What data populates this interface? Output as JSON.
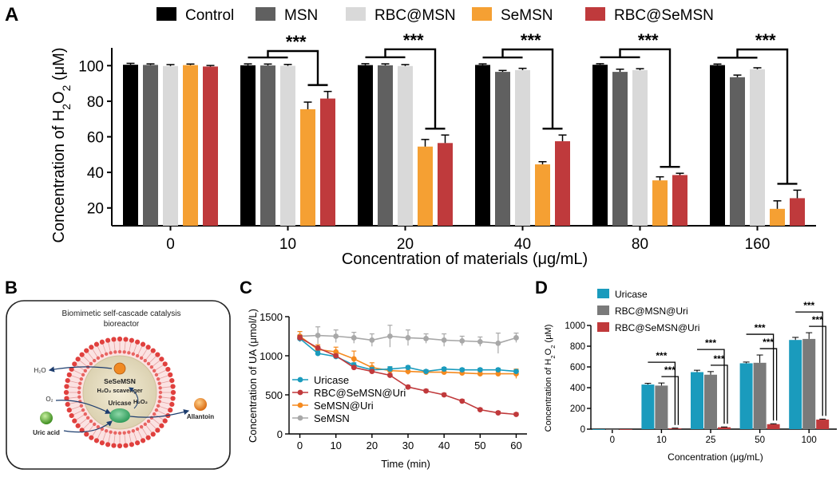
{
  "panels": {
    "A": "A",
    "B": "B",
    "C": "C",
    "D": "D"
  },
  "colors": {
    "control": "#000000",
    "msn": "#606060",
    "rbc_msn": "#d9d9d9",
    "semsn": "#f5a033",
    "rbc_semsn": "#bf3a3c",
    "uricase": "#1a9bbd",
    "rbc_semsn_uri": "#c0393b",
    "semsn_uri": "#f58a1f",
    "semsn_gray": "#a8a8a8",
    "d_uricase": "#1a9bbd",
    "d_rbc_msn_uri": "#7a7a7a",
    "d_rbc_semsn_uri": "#c0393b"
  },
  "chart_data": [
    {
      "type": "bar",
      "panel": "A",
      "xlabel": "Concentration of materials (μg/mL)",
      "ylabel_parts": [
        "Concentration of H",
        "2",
        "O",
        "2",
        " (μM)"
      ],
      "categories": [
        "0",
        "10",
        "20",
        "40",
        "80",
        "160"
      ],
      "ylim": [
        10,
        110
      ],
      "yticks": [
        "20",
        "40",
        "60",
        "80",
        "100"
      ],
      "ytick_values": [
        20,
        40,
        60,
        80,
        100
      ],
      "legend": [
        "Control",
        "MSN",
        "RBC@MSN",
        "SeMSN",
        "RBC@SeMSN"
      ],
      "series": [
        {
          "name": "Control",
          "values": [
            100.5,
            100.2,
            100.3,
            100.4,
            100.5,
            100.3
          ],
          "errors": [
            0.8,
            0.8,
            0.8,
            0.6,
            0.6,
            0.6
          ]
        },
        {
          "name": "MSN",
          "values": [
            100.4,
            100.1,
            100.2,
            96.5,
            96.5,
            93.5
          ],
          "errors": [
            0.6,
            0.8,
            0.8,
            0.8,
            1.5,
            1.2
          ]
        },
        {
          "name": "RBC@MSN",
          "values": [
            99.8,
            99.9,
            99.8,
            97.5,
            97.5,
            98.0
          ],
          "errors": [
            0.8,
            0.8,
            0.8,
            1.0,
            0.8,
            0.8
          ]
        },
        {
          "name": "SeMSN",
          "values": [
            100.3,
            75.5,
            54.5,
            44.5,
            35.5,
            19.5
          ],
          "errors": [
            0.6,
            4.0,
            4.0,
            1.5,
            2.0,
            4.5
          ]
        },
        {
          "name": "RBC@SeMSN",
          "values": [
            99.5,
            81.5,
            56.5,
            57.5,
            38.5,
            25.5
          ],
          "errors": [
            0.6,
            4.0,
            4.5,
            3.5,
            1.0,
            4.5
          ]
        }
      ],
      "significance": [
        "***",
        "***",
        "***",
        "***",
        "***"
      ]
    },
    {
      "type": "line",
      "panel": "C",
      "xlabel": "Time (min)",
      "ylabel": "Concentration of  UA (μmol/L)",
      "xlim": [
        -3,
        63
      ],
      "ylim": [
        0,
        1500
      ],
      "xticks": [
        "0",
        "10",
        "20",
        "30",
        "40",
        "50",
        "60"
      ],
      "xtick_values": [
        0,
        10,
        20,
        30,
        40,
        50,
        60
      ],
      "yticks": [
        "0",
        "500",
        "1000",
        "1500"
      ],
      "ytick_values": [
        0,
        500,
        1000,
        1500
      ],
      "x": [
        0,
        5,
        10,
        15,
        20,
        25,
        30,
        35,
        40,
        45,
        50,
        55,
        60
      ],
      "series": [
        {
          "name": "Uricase",
          "values": [
            1220,
            1030,
            990,
            880,
            820,
            830,
            850,
            800,
            830,
            820,
            820,
            820,
            800
          ],
          "errors": [
            40,
            30,
            30,
            30,
            30,
            30,
            20,
            20,
            20,
            20,
            20,
            20,
            20
          ]
        },
        {
          "name": "RBC@SeMSN@Uri",
          "values": [
            1230,
            1100,
            1000,
            850,
            800,
            750,
            600,
            550,
            500,
            420,
            310,
            270,
            250
          ],
          "errors": [
            30,
            20,
            20,
            20,
            20,
            20,
            20,
            20,
            20,
            20,
            20,
            20,
            20
          ]
        },
        {
          "name": "SeMSN@Uri",
          "values": [
            1250,
            1080,
            1050,
            960,
            850,
            810,
            800,
            790,
            790,
            780,
            770,
            770,
            770
          ],
          "errors": [
            60,
            60,
            60,
            100,
            60,
            40,
            40,
            30,
            30,
            30,
            30,
            30,
            60
          ]
        },
        {
          "name": "SeMSN",
          "values": [
            1250,
            1260,
            1250,
            1230,
            1200,
            1250,
            1230,
            1220,
            1200,
            1190,
            1180,
            1160,
            1230
          ],
          "errors": [
            60,
            110,
            80,
            70,
            80,
            140,
            100,
            60,
            80,
            60,
            60,
            130,
            60
          ]
        }
      ]
    },
    {
      "type": "bar",
      "panel": "D",
      "xlabel": "Concentration (μg/mL)",
      "ylabel_parts": [
        "Concentration of H",
        "2",
        "O",
        "2",
        " (μM)"
      ],
      "categories": [
        "0",
        "10",
        "25",
        "50",
        "100"
      ],
      "ylim": [
        0,
        1000
      ],
      "yticks": [
        "0",
        "200",
        "400",
        "600",
        "800",
        "1000"
      ],
      "ytick_values": [
        0,
        200,
        400,
        600,
        800,
        1000
      ],
      "legend": [
        "Uricase",
        "RBC@MSN@Uri",
        "RBC@SeMSN@Uri"
      ],
      "series": [
        {
          "name": "Uricase",
          "values": [
            0,
            430,
            550,
            635,
            860
          ],
          "errors": [
            0,
            12,
            18,
            12,
            25
          ]
        },
        {
          "name": "RBC@MSN@Uri",
          "values": [
            0,
            420,
            525,
            640,
            870
          ],
          "errors": [
            0,
            25,
            30,
            75,
            60
          ]
        },
        {
          "name": "RBC@SeMSN@Uri",
          "values": [
            0,
            8,
            18,
            48,
            92
          ],
          "errors": [
            0,
            2,
            3,
            4,
            5
          ]
        }
      ],
      "significance": [
        "***",
        "***"
      ]
    }
  ],
  "schematic": {
    "title_line1": "Biomimetic self-cascade catalysis",
    "title_line2": "bioreactor",
    "core_label": "SeSeMSN",
    "scavenger_label": "H₂O₂ scavenger",
    "h2o_label": "H₂O",
    "h2o2_label": "H₂O₂",
    "o2_label": "O₂",
    "uricase_label": "Uricase",
    "uric_acid_label": "Uric acid",
    "allantoin_label": "Allantoin"
  }
}
